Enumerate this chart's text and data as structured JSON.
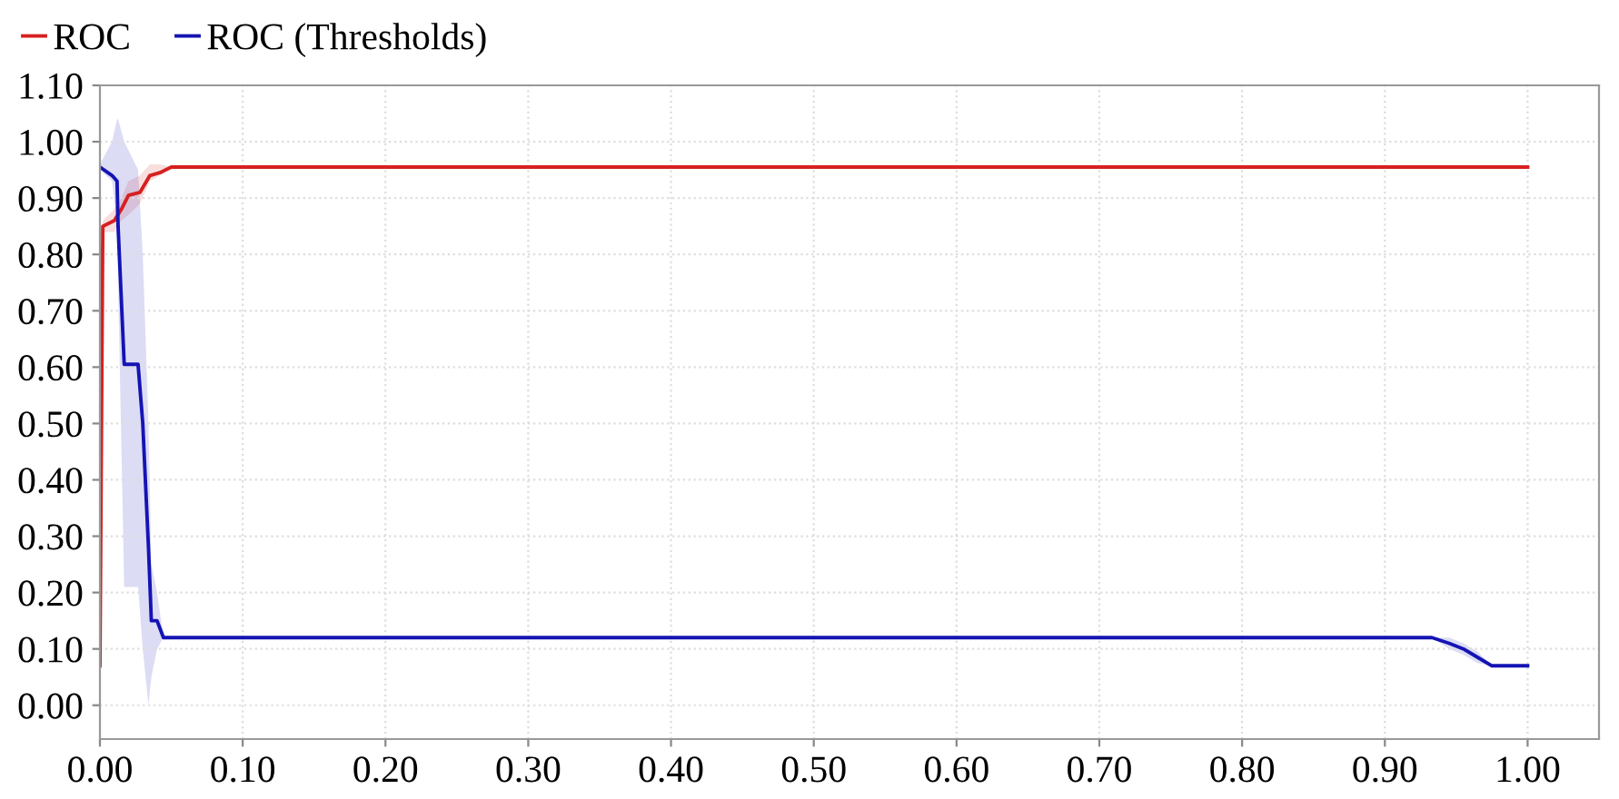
{
  "chart_data": {
    "type": "line",
    "series": [
      {
        "name": "ROC",
        "color": "#d62020",
        "x": [
          0,
          0.002,
          0.01,
          0.015,
          0.02,
          0.028,
          0.035,
          0.042,
          0.05,
          1.0
        ],
        "values": [
          0.07,
          0.85,
          0.86,
          0.88,
          0.905,
          0.91,
          0.94,
          0.945,
          0.955,
          0.955
        ],
        "lower": [
          0.07,
          0.84,
          0.84,
          0.86,
          0.87,
          0.89,
          0.93,
          0.94,
          0.955,
          0.955
        ],
        "upper": [
          0.07,
          0.86,
          0.88,
          0.9,
          0.93,
          0.94,
          0.96,
          0.96,
          0.955,
          0.955
        ]
      },
      {
        "name": "ROC (Thresholds)",
        "color": "#1414b4",
        "x": [
          0,
          0.0085,
          0.012,
          0.0127,
          0.017,
          0.0267,
          0.03,
          0.034,
          0.036,
          0.04,
          0.0445,
          0.933,
          0.945,
          0.955,
          0.965,
          0.975,
          1.0
        ],
        "values": [
          0.955,
          0.94,
          0.93,
          0.85,
          0.605,
          0.605,
          0.5,
          0.28,
          0.15,
          0.15,
          0.12,
          0.12,
          0.11,
          0.1,
          0.085,
          0.07,
          0.07
        ],
        "lower": [
          0.95,
          0.93,
          0.85,
          0.75,
          0.21,
          0.21,
          0.1,
          0.0,
          0.05,
          0.1,
          0.12,
          0.12,
          0.1,
          0.09,
          0.075,
          0.07,
          0.07
        ],
        "upper": [
          0.96,
          1.0,
          1.04,
          1.04,
          1.0,
          0.95,
          0.8,
          0.5,
          0.25,
          0.2,
          0.12,
          0.12,
          0.12,
          0.11,
          0.095,
          0.07,
          0.07
        ]
      }
    ],
    "xlim": [
      0,
      1.05
    ],
    "xticks": [
      {
        "value": 0,
        "label": "0.00"
      },
      {
        "value": 0.1,
        "label": "0.10"
      },
      {
        "value": 0.2,
        "label": "0.20"
      },
      {
        "value": 0.3,
        "label": "0.30"
      },
      {
        "value": 0.4,
        "label": "0.40"
      },
      {
        "value": 0.5,
        "label": "0.50"
      },
      {
        "value": 0.6,
        "label": "0.60"
      },
      {
        "value": 0.7,
        "label": "0.70"
      },
      {
        "value": 0.8,
        "label": "0.80"
      },
      {
        "value": 0.9,
        "label": "0.90"
      },
      {
        "value": 1.0,
        "label": "1.00"
      }
    ],
    "ylim": [
      -0.06,
      1.1
    ],
    "yticks": [
      {
        "value": 0,
        "label": "0.00"
      },
      {
        "value": 0.1,
        "label": "0.10"
      },
      {
        "value": 0.2,
        "label": "0.20"
      },
      {
        "value": 0.3,
        "label": "0.30"
      },
      {
        "value": 0.4,
        "label": "0.40"
      },
      {
        "value": 0.5,
        "label": "0.50"
      },
      {
        "value": 0.6,
        "label": "0.60"
      },
      {
        "value": 0.7,
        "label": "0.70"
      },
      {
        "value": 0.8,
        "label": "0.80"
      },
      {
        "value": 0.9,
        "label": "0.90"
      },
      {
        "value": 1.0,
        "label": "1.00"
      },
      {
        "value": 1.1,
        "label": "1.10"
      }
    ],
    "grid": true,
    "legend": "top left",
    "marker": "none",
    "line_style": "solid"
  }
}
